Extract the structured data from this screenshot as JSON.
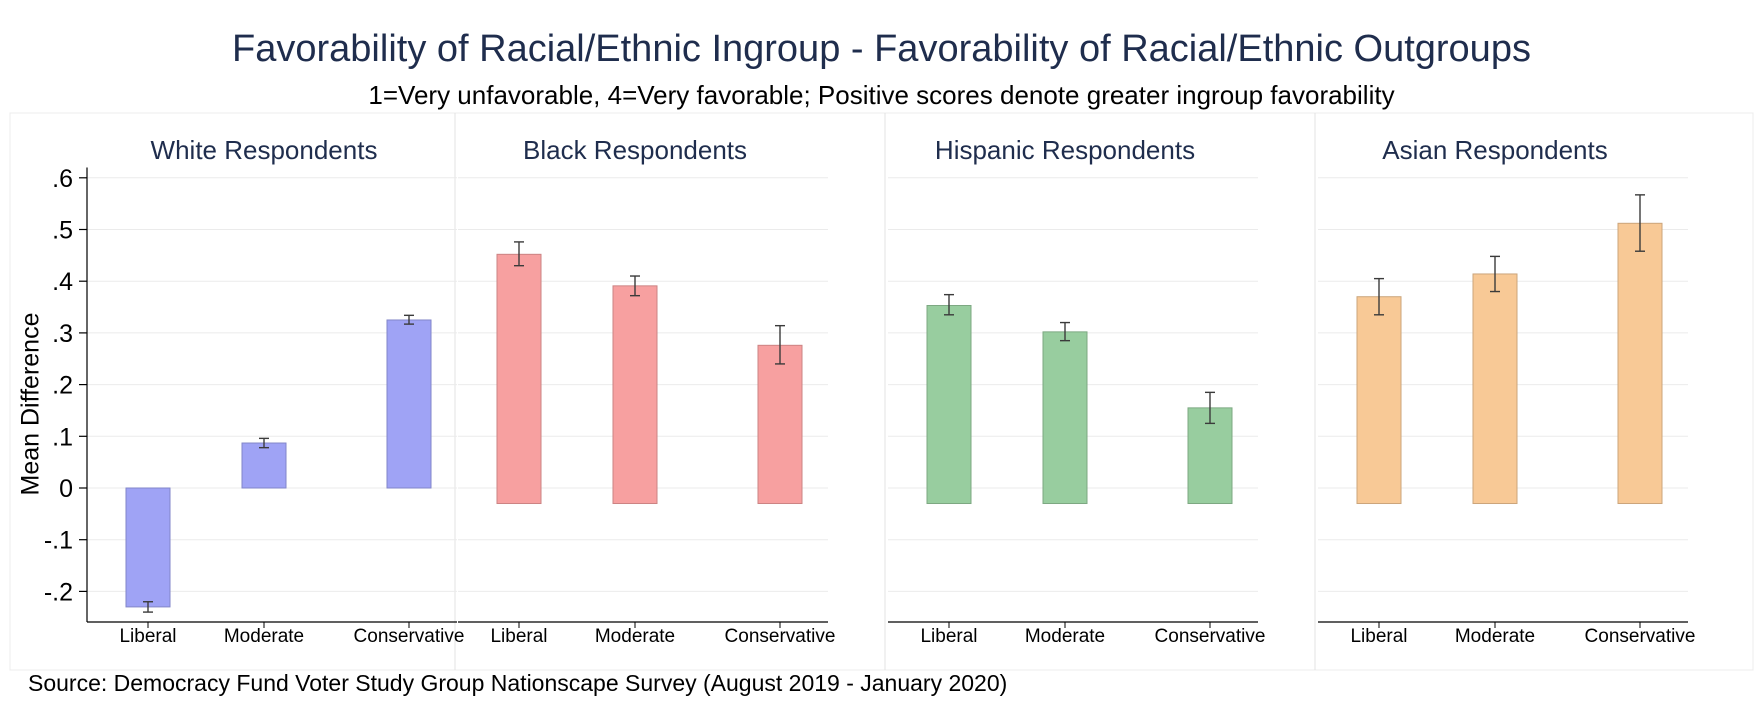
{
  "title": "Favorability of Racial/Ethnic Ingroup - Favorability of Racial/Ethnic Outgroups",
  "subtitle": "1=Very unfavorable, 4=Very favorable; Positive scores denote greater ingroup favorability",
  "source": "Source: Democracy Fund Voter Study Group Nationscape Survey (August 2019 - January 2020)",
  "chart_data": {
    "type": "bar",
    "ylabel": "Mean Difference",
    "ylim": [
      -0.25,
      0.62
    ],
    "yticks": [
      -0.2,
      -0.1,
      0,
      0.1,
      0.2,
      0.3,
      0.4,
      0.5,
      0.6
    ],
    "ytick_labels": [
      "-.2",
      "-.1",
      "0",
      ".1",
      ".2",
      ".3",
      ".4",
      ".5",
      ".6"
    ],
    "categories": [
      "Liberal",
      "Moderate",
      "Conservative"
    ],
    "grid": true,
    "panels": [
      {
        "name": "White Respondents",
        "color": "#9fa3f5",
        "values": [
          -0.23,
          0.087,
          0.325
        ],
        "ci_low": [
          -0.24,
          0.078,
          0.317
        ],
        "ci_high": [
          -0.22,
          0.096,
          0.334
        ]
      },
      {
        "name": "Black Respondents",
        "color": "#f7a0a0",
        "values": [
          0.452,
          0.391,
          0.276
        ],
        "ci_low": [
          0.43,
          0.372,
          0.24
        ],
        "ci_high": [
          0.476,
          0.41,
          0.314
        ]
      },
      {
        "name": "Hispanic Respondents",
        "color": "#98cd9f",
        "values": [
          0.353,
          0.302,
          0.155
        ],
        "ci_low": [
          0.335,
          0.285,
          0.125
        ],
        "ci_high": [
          0.374,
          0.32,
          0.185
        ]
      },
      {
        "name": "Asian Respondents",
        "color": "#f8c996",
        "values": [
          0.37,
          0.414,
          0.512
        ],
        "ci_low": [
          0.335,
          0.38,
          0.458
        ],
        "ci_high": [
          0.405,
          0.448,
          0.567
        ]
      }
    ]
  }
}
